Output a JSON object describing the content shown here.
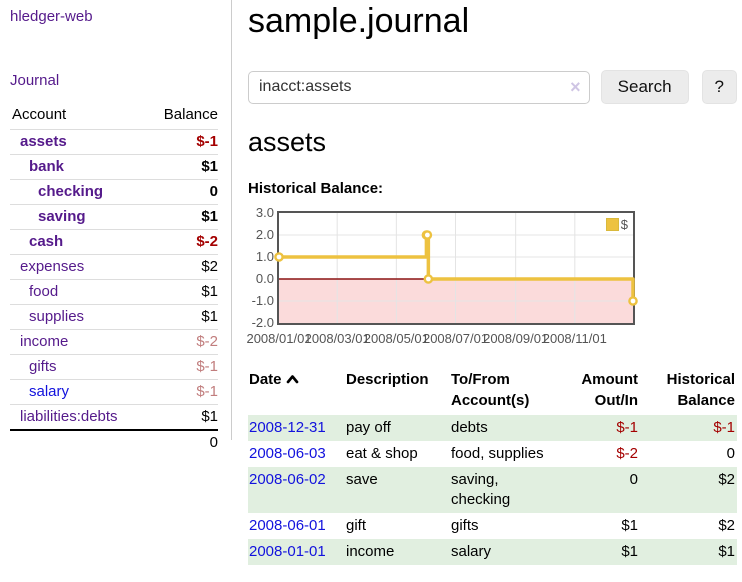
{
  "sidebar": {
    "brand": "hledger-web",
    "journal_link": "Journal",
    "account_header": "Account",
    "balance_header": "Balance",
    "accounts": [
      {
        "name": "assets",
        "indent": 0,
        "balance": "$-1",
        "bold": true,
        "balance_tone": "negative-strong",
        "link_tone": "purple"
      },
      {
        "name": "bank",
        "indent": 1,
        "balance": "$1",
        "bold": true,
        "balance_tone": "normal",
        "link_tone": "purple"
      },
      {
        "name": "checking",
        "indent": 2,
        "balance": "0",
        "bold": true,
        "balance_tone": "normal",
        "link_tone": "purple"
      },
      {
        "name": "saving",
        "indent": 2,
        "balance": "$1",
        "bold": true,
        "balance_tone": "normal",
        "link_tone": "purple"
      },
      {
        "name": "cash",
        "indent": 1,
        "balance": "$-2",
        "bold": true,
        "balance_tone": "negative-strong",
        "link_tone": "purple"
      },
      {
        "name": "expenses",
        "indent": 0,
        "balance": "$2",
        "bold": false,
        "balance_tone": "normal",
        "link_tone": "purple"
      },
      {
        "name": "food",
        "indent": 1,
        "balance": "$1",
        "bold": false,
        "balance_tone": "normal",
        "link_tone": "purple"
      },
      {
        "name": "supplies",
        "indent": 1,
        "balance": "$1",
        "bold": false,
        "balance_tone": "normal",
        "link_tone": "purple"
      },
      {
        "name": "income",
        "indent": 0,
        "balance": "$-2",
        "bold": false,
        "balance_tone": "negative-soft",
        "link_tone": "purple"
      },
      {
        "name": "gifts",
        "indent": 1,
        "balance": "$-1",
        "bold": false,
        "balance_tone": "negative-soft",
        "link_tone": "purple"
      },
      {
        "name": "salary",
        "indent": 1,
        "balance": "$-1",
        "bold": false,
        "balance_tone": "negative-soft",
        "link_tone": "blue"
      },
      {
        "name": "liabilities:debts",
        "indent": 0,
        "balance": "$1",
        "bold": false,
        "balance_tone": "normal",
        "link_tone": "purple"
      }
    ],
    "total_balance": "0"
  },
  "header": {
    "title": "sample.journal"
  },
  "search": {
    "value": "inacct:assets",
    "clear_icon": "×",
    "search_button": "Search",
    "help_button": "?"
  },
  "account_view": {
    "heading": "assets",
    "section_label": "Historical Balance:"
  },
  "chart_data": {
    "type": "line",
    "title": "Historical Balance",
    "step": true,
    "series": [
      {
        "name": "$",
        "color": "#EDC240",
        "points": [
          {
            "date": "2008-01-01",
            "value": 1
          },
          {
            "date": "2008-06-01",
            "value": 2
          },
          {
            "date": "2008-06-02",
            "value": 2
          },
          {
            "date": "2008-06-03",
            "value": 0
          },
          {
            "date": "2008-12-31",
            "value": -1
          }
        ]
      }
    ],
    "ylim": [
      -2,
      3
    ],
    "ytick_labels": [
      "3.0",
      "2.0",
      "1.0",
      "0.0",
      "-1.0",
      "-2.0"
    ],
    "yticks": [
      3,
      2,
      1,
      0,
      -1,
      -2
    ],
    "xtick_labels": [
      "2008/01/01",
      "2008/03/01",
      "2008/05/01",
      "2008/07/01",
      "2008/09/01",
      "2008/11/01"
    ],
    "xtick_dates": [
      "2008-01-01",
      "2008-03-01",
      "2008-05-01",
      "2008-07-01",
      "2008-09-01",
      "2008-11-01"
    ],
    "x_range": [
      "2008-01-01",
      "2008-12-31"
    ],
    "legend": {
      "label": "$",
      "position": "top-right"
    },
    "grid": true,
    "negative_region_color": "#fbdbdb",
    "zero_line_color": "#8b1414",
    "gridline_color": "#e4e4e4"
  },
  "register": {
    "columns": [
      {
        "label": "Date",
        "align": "left",
        "sorted": "asc"
      },
      {
        "label": "Description",
        "align": "left"
      },
      {
        "label": "To/From Account(s)",
        "align": "left"
      },
      {
        "label": "Amount Out/In",
        "align": "right"
      },
      {
        "label": "Historical Balance",
        "align": "right"
      }
    ],
    "rows": [
      {
        "date": "2008-12-31",
        "description": "pay off",
        "accounts": "debts",
        "amount": "$-1",
        "balance": "$-1",
        "amount_negative": true,
        "balance_negative": true,
        "shaded": true
      },
      {
        "date": "2008-06-03",
        "description": "eat & shop",
        "accounts": "food, supplies",
        "amount": "$-2",
        "balance": "0",
        "amount_negative": true,
        "balance_negative": false,
        "shaded": false
      },
      {
        "date": "2008-06-02",
        "description": "save",
        "accounts": "saving, checking",
        "amount": "0",
        "balance": "$2",
        "amount_negative": false,
        "balance_negative": false,
        "shaded": true
      },
      {
        "date": "2008-06-01",
        "description": "gift",
        "accounts": "gifts",
        "amount": "$1",
        "balance": "$2",
        "amount_negative": false,
        "balance_negative": false,
        "shaded": false
      },
      {
        "date": "2008-01-01",
        "description": "income",
        "accounts": "salary",
        "amount": "$1",
        "balance": "$1",
        "amount_negative": false,
        "balance_negative": false,
        "shaded": true
      }
    ]
  },
  "colors": {
    "link_purple": "#551a8b",
    "link_blue": "#1212dd",
    "negative_strong": "#a40000",
    "negative_soft": "#c17d7d",
    "row_shade_green": "#e1efe0",
    "axis_text": "#545454"
  }
}
